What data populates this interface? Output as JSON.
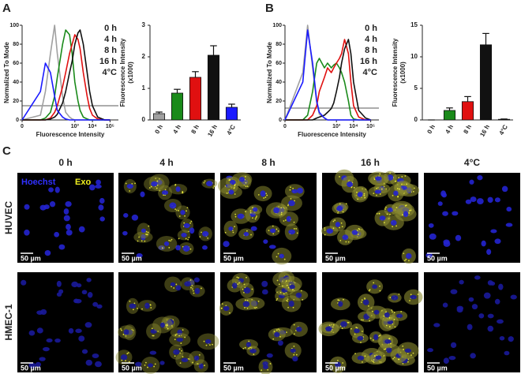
{
  "panel_labels": [
    "A",
    "B",
    "C"
  ],
  "chart_data": [
    {
      "type": "line",
      "xscale": "symlog",
      "xlabel": "Fluorescence Intensity",
      "ylabel": "Normalized To Mode",
      "x": [
        0,
        10,
        20,
        40,
        70,
        100,
        200,
        300,
        500,
        700,
        1000,
        1500,
        2000,
        3000,
        5000,
        7000,
        10000,
        20000,
        50000,
        100000
      ],
      "xlim": [
        0,
        300000
      ],
      "xticks": [
        0,
        {
          "value": 1000,
          "label": "10³"
        },
        {
          "value": 10000,
          "label": "10⁴"
        },
        {
          "value": 100000,
          "label": "10⁵"
        }
      ],
      "ylim": [
        0,
        100
      ],
      "yticks": [
        0,
        20,
        40,
        60,
        80,
        100
      ],
      "legend": "upper right",
      "series": [
        {
          "name": "0 h",
          "color": "#a0a0a0",
          "values": [
            0,
            5,
            30,
            70,
            100,
            70,
            25,
            8,
            3,
            1,
            0,
            0,
            0,
            0,
            0,
            0,
            0,
            0,
            0,
            0
          ]
        },
        {
          "name": "4 h",
          "color": "#1a8a1a",
          "values": [
            0,
            0,
            2,
            8,
            25,
            45,
            80,
            95,
            90,
            70,
            40,
            20,
            10,
            3,
            1,
            0,
            0,
            0,
            0,
            0
          ]
        },
        {
          "name": "8 h",
          "color": "#e01010",
          "values": [
            0,
            0,
            0,
            2,
            8,
            15,
            35,
            50,
            70,
            80,
            90,
            85,
            75,
            50,
            25,
            12,
            5,
            1,
            0,
            0
          ]
        },
        {
          "name": "16 h",
          "color": "#111111",
          "values": [
            0,
            0,
            0,
            1,
            3,
            6,
            18,
            30,
            50,
            62,
            80,
            92,
            95,
            80,
            50,
            30,
            15,
            3,
            0,
            0
          ]
        },
        {
          "name": "4°C",
          "color": "#1a1aff",
          "values": [
            0,
            30,
            60,
            50,
            25,
            10,
            3,
            1,
            0,
            0,
            0,
            0,
            0,
            0,
            0,
            0,
            0,
            0,
            0,
            0
          ]
        }
      ]
    },
    {
      "type": "bar",
      "ylabel": "Fluorescence Intensity",
      "ylabel_unit": "(x1000)",
      "categories": [
        "0 h",
        "4 h",
        "8 h",
        "16 h",
        "4°C"
      ],
      "values": [
        0.2,
        0.85,
        1.35,
        2.05,
        0.4
      ],
      "errors": [
        0.05,
        0.12,
        0.18,
        0.3,
        0.1
      ],
      "colors": [
        "#a0a0a0",
        "#1a8a1a",
        "#e01010",
        "#111111",
        "#1a1aff"
      ],
      "ylim": [
        0,
        3
      ],
      "yticks": [
        0,
        1,
        2,
        3
      ]
    },
    {
      "type": "line",
      "xscale": "symlog",
      "xlabel": "Fluorescence Intensity",
      "ylabel": "Normalized To Mode",
      "x": [
        0,
        10,
        20,
        40,
        70,
        100,
        200,
        300,
        500,
        700,
        1000,
        1500,
        2000,
        3000,
        5000,
        7000,
        10000,
        20000,
        50000,
        100000
      ],
      "xlim": [
        0,
        300000
      ],
      "xticks": [
        0,
        {
          "value": 1000,
          "label": "10³"
        },
        {
          "value": 10000,
          "label": "10⁴"
        },
        {
          "value": 100000,
          "label": "10⁵"
        }
      ],
      "ylim": [
        0,
        100
      ],
      "yticks": [
        0,
        20,
        40,
        60,
        80,
        100
      ],
      "legend": "upper right",
      "series": [
        {
          "name": "0 h",
          "color": "#a0a0a0",
          "values": [
            0,
            50,
            100,
            55,
            18,
            6,
            2,
            0,
            0,
            0,
            0,
            0,
            0,
            0,
            0,
            0,
            0,
            0,
            0,
            0
          ]
        },
        {
          "name": "4 h",
          "color": "#1a8a1a",
          "values": [
            0,
            0,
            5,
            30,
            60,
            65,
            55,
            60,
            55,
            58,
            60,
            55,
            50,
            40,
            20,
            5,
            1,
            0,
            0,
            0
          ]
        },
        {
          "name": "8 h",
          "color": "#e01010",
          "values": [
            0,
            0,
            0,
            5,
            15,
            30,
            45,
            55,
            50,
            55,
            60,
            65,
            70,
            85,
            70,
            40,
            15,
            3,
            0,
            0
          ]
        },
        {
          "name": "16 h",
          "color": "#111111",
          "values": [
            0,
            0,
            0,
            0,
            2,
            3,
            5,
            8,
            12,
            18,
            30,
            45,
            60,
            75,
            85,
            70,
            40,
            10,
            2,
            0
          ]
        },
        {
          "name": "4°C",
          "color": "#1a1aff",
          "values": [
            0,
            40,
            95,
            60,
            20,
            8,
            2,
            0,
            0,
            0,
            0,
            0,
            0,
            0,
            0,
            0,
            0,
            0,
            0,
            0
          ]
        }
      ]
    },
    {
      "type": "bar",
      "ylabel": "Fluorescence Intensity",
      "ylabel_unit": "(x1000)",
      "categories": [
        "0 h",
        "4 h",
        "8 h",
        "16 h",
        "4°C"
      ],
      "values": [
        0,
        1.5,
        2.9,
        11.9,
        0.1
      ],
      "errors": [
        0,
        0.4,
        0.8,
        1.8,
        0.05
      ],
      "colors": [
        "#a0a0a0",
        "#1a8a1a",
        "#e01010",
        "#111111",
        "#1a1aff"
      ],
      "ylim": [
        0,
        15
      ],
      "yticks": [
        0,
        5,
        10,
        15
      ]
    }
  ],
  "panel_c": {
    "columns": [
      "0 h",
      "4 h",
      "8 h",
      "16 h",
      "4°C"
    ],
    "rows": [
      "HUVEC",
      "HMEC-1"
    ],
    "channels": [
      {
        "name": "Hoechst",
        "color": "#3030ff"
      },
      {
        "name": "Exo",
        "color": "#f0f020"
      }
    ],
    "scale_bar": "50 µm"
  }
}
